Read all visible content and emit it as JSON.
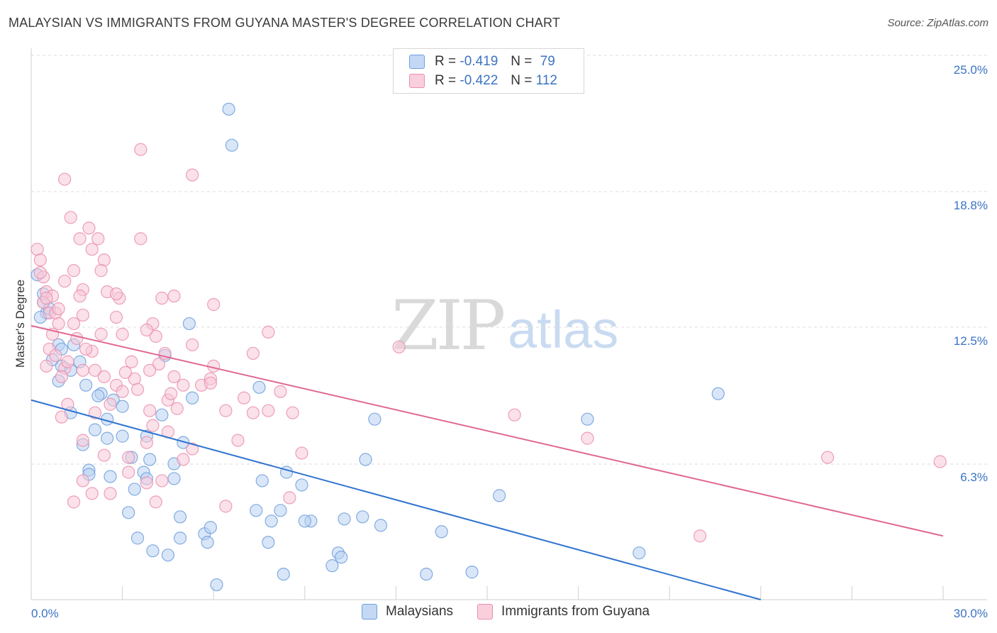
{
  "title": "MALAYSIAN VS IMMIGRANTS FROM GUYANA MASTER'S DEGREE CORRELATION CHART",
  "source": "Source: ZipAtlas.com",
  "watermark": {
    "zip": "ZIP",
    "atlas": "atlas"
  },
  "legend": {
    "rows": [
      {
        "r_label": "R =",
        "r_value": "-0.419",
        "n_label": "N =",
        "n_value": "79",
        "color": "#a9c6ef"
      },
      {
        "r_label": "R =",
        "r_value": "-0.422",
        "n_label": "N =",
        "n_value": "112",
        "color": "#f5b8cb"
      }
    ]
  },
  "bottom_legend": [
    {
      "label": "Malaysians",
      "color": "#a9c6ef"
    },
    {
      "label": "Immigrants from Guyana",
      "color": "#f5b8cb"
    }
  ],
  "chart_data": {
    "type": "scatter",
    "title": "MALAYSIAN VS IMMIGRANTS FROM GUYANA MASTER'S DEGREE CORRELATION CHART",
    "xlabel": "",
    "ylabel": "Master's Degree",
    "xlim": [
      0,
      30
    ],
    "ylim": [
      0,
      25
    ],
    "x_tick_labels": [
      "0.0%",
      "30.0%"
    ],
    "y_tick_labels": [
      "25.0%",
      "18.8%",
      "12.5%",
      "6.3%"
    ],
    "y_ticks": [
      25.0,
      18.8,
      12.5,
      6.3
    ],
    "grid": true,
    "series": [
      {
        "name": "Malaysians",
        "color": "#6f9fdc",
        "fill": "#b9d2f2",
        "trend": {
          "x": [
            0,
            24
          ],
          "y": [
            9.4,
            0
          ]
        },
        "points": [
          [
            0.2,
            15.3
          ],
          [
            0.4,
            14.0
          ],
          [
            0.5,
            13.5
          ],
          [
            0.3,
            13.3
          ],
          [
            0.7,
            11.3
          ],
          [
            1.0,
            11.0
          ],
          [
            0.9,
            12.0
          ],
          [
            1.4,
            12.0
          ],
          [
            1.3,
            10.8
          ],
          [
            0.9,
            10.3
          ],
          [
            1.8,
            10.1
          ],
          [
            2.3,
            9.7
          ],
          [
            2.7,
            9.4
          ],
          [
            3.0,
            9.1
          ],
          [
            2.5,
            8.5
          ],
          [
            1.3,
            8.8
          ],
          [
            2.1,
            8.0
          ],
          [
            1.7,
            7.3
          ],
          [
            2.5,
            7.6
          ],
          [
            3.0,
            7.7
          ],
          [
            3.8,
            7.7
          ],
          [
            4.3,
            8.7
          ],
          [
            4.4,
            11.5
          ],
          [
            5.3,
            9.5
          ],
          [
            5.2,
            13.0
          ],
          [
            5.0,
            7.4
          ],
          [
            4.7,
            6.4
          ],
          [
            3.9,
            6.6
          ],
          [
            3.3,
            6.7
          ],
          [
            2.6,
            5.8
          ],
          [
            1.9,
            6.1
          ],
          [
            1.9,
            5.9
          ],
          [
            3.7,
            6.0
          ],
          [
            3.8,
            5.7
          ],
          [
            4.7,
            5.7
          ],
          [
            3.4,
            5.2
          ],
          [
            3.2,
            4.1
          ],
          [
            4.9,
            3.9
          ],
          [
            3.5,
            2.9
          ],
          [
            4.0,
            2.3
          ],
          [
            4.5,
            2.1
          ],
          [
            4.9,
            2.9
          ],
          [
            5.7,
            3.1
          ],
          [
            5.8,
            2.7
          ],
          [
            5.9,
            3.4
          ],
          [
            6.1,
            0.7
          ],
          [
            7.4,
            4.2
          ],
          [
            7.8,
            2.7
          ],
          [
            7.9,
            3.7
          ],
          [
            7.6,
            5.6
          ],
          [
            8.2,
            4.2
          ],
          [
            8.3,
            1.2
          ],
          [
            8.4,
            6.0
          ],
          [
            8.9,
            5.4
          ],
          [
            9.2,
            3.7
          ],
          [
            9.0,
            3.7
          ],
          [
            9.9,
            1.6
          ],
          [
            10.1,
            2.2
          ],
          [
            10.2,
            2.0
          ],
          [
            10.3,
            3.8
          ],
          [
            10.9,
            3.9
          ],
          [
            11.0,
            6.6
          ],
          [
            11.5,
            3.5
          ],
          [
            11.3,
            8.5
          ],
          [
            13.0,
            1.2
          ],
          [
            13.5,
            3.2
          ],
          [
            14.5,
            1.3
          ],
          [
            15.4,
            4.9
          ],
          [
            18.3,
            8.5
          ],
          [
            20.0,
            2.2
          ],
          [
            22.6,
            9.7
          ],
          [
            7.5,
            10.0
          ],
          [
            6.5,
            23.1
          ],
          [
            6.6,
            21.4
          ],
          [
            0.4,
            14.4
          ],
          [
            0.6,
            13.7
          ],
          [
            1.0,
            11.8
          ],
          [
            1.6,
            11.2
          ],
          [
            2.2,
            9.6
          ]
        ]
      },
      {
        "name": "Immigrants from Guyana",
        "color": "#ea8fae",
        "fill": "#f8c8d7",
        "trend": {
          "x": [
            0,
            30
          ],
          "y": [
            12.9,
            3.0
          ]
        },
        "points": [
          [
            0.2,
            16.5
          ],
          [
            0.3,
            16.0
          ],
          [
            0.4,
            15.2
          ],
          [
            0.5,
            14.5
          ],
          [
            0.4,
            14.0
          ],
          [
            0.7,
            14.3
          ],
          [
            0.6,
            13.5
          ],
          [
            0.8,
            13.5
          ],
          [
            0.9,
            13.0
          ],
          [
            0.7,
            12.5
          ],
          [
            0.6,
            11.8
          ],
          [
            0.8,
            11.5
          ],
          [
            0.5,
            11.0
          ],
          [
            1.1,
            10.9
          ],
          [
            1.0,
            10.5
          ],
          [
            1.2,
            11.2
          ],
          [
            1.1,
            15.0
          ],
          [
            1.4,
            15.5
          ],
          [
            1.7,
            14.6
          ],
          [
            1.1,
            19.8
          ],
          [
            1.3,
            18.0
          ],
          [
            1.6,
            17.0
          ],
          [
            1.9,
            17.5
          ],
          [
            2.0,
            16.5
          ],
          [
            2.2,
            17.0
          ],
          [
            2.4,
            16.0
          ],
          [
            2.3,
            15.5
          ],
          [
            2.5,
            14.5
          ],
          [
            2.9,
            14.2
          ],
          [
            3.0,
            12.5
          ],
          [
            2.8,
            13.3
          ],
          [
            2.3,
            12.5
          ],
          [
            1.7,
            13.4
          ],
          [
            1.4,
            13.0
          ],
          [
            1.5,
            12.3
          ],
          [
            2.0,
            11.7
          ],
          [
            2.1,
            10.8
          ],
          [
            1.7,
            10.8
          ],
          [
            2.8,
            10.1
          ],
          [
            3.0,
            9.8
          ],
          [
            3.3,
            11.2
          ],
          [
            3.4,
            10.4
          ],
          [
            3.5,
            9.9
          ],
          [
            2.6,
            9.2
          ],
          [
            2.1,
            8.8
          ],
          [
            1.2,
            9.2
          ],
          [
            1.0,
            8.6
          ],
          [
            1.7,
            7.5
          ],
          [
            2.4,
            6.8
          ],
          [
            3.2,
            6.7
          ],
          [
            3.8,
            7.4
          ],
          [
            4.0,
            8.2
          ],
          [
            3.9,
            8.9
          ],
          [
            4.5,
            9.4
          ],
          [
            4.6,
            9.7
          ],
          [
            4.7,
            10.5
          ],
          [
            5.0,
            10.1
          ],
          [
            5.3,
            12.0
          ],
          [
            5.6,
            10.1
          ],
          [
            5.9,
            10.4
          ],
          [
            6.0,
            11.0
          ],
          [
            6.0,
            13.9
          ],
          [
            6.4,
            8.9
          ],
          [
            6.8,
            7.5
          ],
          [
            7.3,
            8.8
          ],
          [
            7.8,
            8.9
          ],
          [
            7.8,
            12.6
          ],
          [
            7.3,
            11.6
          ],
          [
            8.2,
            9.8
          ],
          [
            8.6,
            8.8
          ],
          [
            8.9,
            6.9
          ],
          [
            8.5,
            4.8
          ],
          [
            6.4,
            4.4
          ],
          [
            4.1,
            4.6
          ],
          [
            4.3,
            5.6
          ],
          [
            3.8,
            5.5
          ],
          [
            3.2,
            6.0
          ],
          [
            2.6,
            5.0
          ],
          [
            2.0,
            5.0
          ],
          [
            1.7,
            5.6
          ],
          [
            1.4,
            4.6
          ],
          [
            3.6,
            21.2
          ],
          [
            5.3,
            20.0
          ],
          [
            3.6,
            17.0
          ],
          [
            4.3,
            14.2
          ],
          [
            4.7,
            14.3
          ],
          [
            4.0,
            13.0
          ],
          [
            4.1,
            12.4
          ],
          [
            3.8,
            12.7
          ],
          [
            4.2,
            11.1
          ],
          [
            4.4,
            11.6
          ],
          [
            4.8,
            9.0
          ],
          [
            5.0,
            6.6
          ],
          [
            5.3,
            7.1
          ],
          [
            7.0,
            9.5
          ],
          [
            12.1,
            11.9
          ],
          [
            15.9,
            8.7
          ],
          [
            18.3,
            7.6
          ],
          [
            22.0,
            3.0
          ],
          [
            26.2,
            6.7
          ],
          [
            29.9,
            6.5
          ],
          [
            0.3,
            15.4
          ],
          [
            0.5,
            14.2
          ],
          [
            1.8,
            11.8
          ],
          [
            2.4,
            10.5
          ],
          [
            3.1,
            10.7
          ],
          [
            3.9,
            10.8
          ],
          [
            4.5,
            7.9
          ],
          [
            5.9,
            10.2
          ],
          [
            2.8,
            14.4
          ],
          [
            1.6,
            14.3
          ],
          [
            0.9,
            13.7
          ]
        ]
      }
    ]
  }
}
